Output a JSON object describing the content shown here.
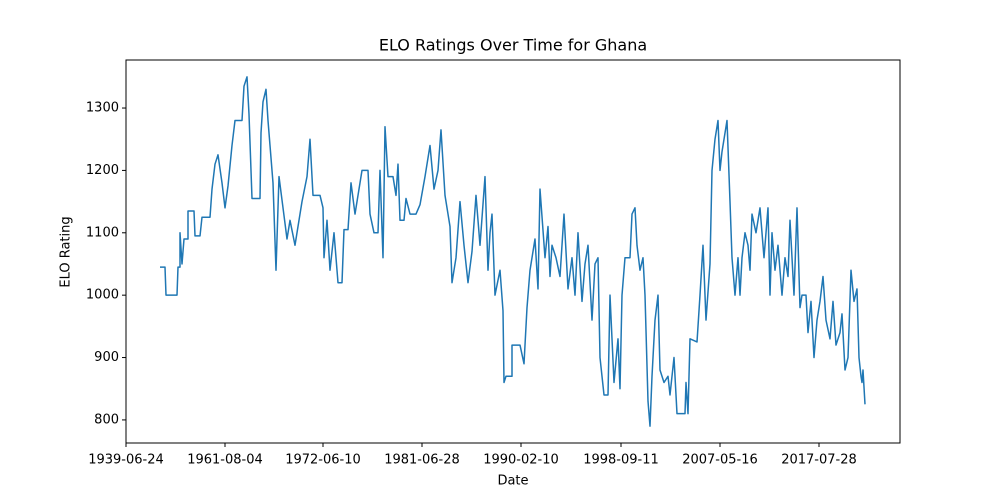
{
  "chart_data": {
    "type": "line",
    "title": "ELO Ratings Over Time for Ghana",
    "x_label": "Date",
    "y_label": "ELO Rating",
    "xlim": [
      -34,
      740
    ],
    "xticks": [
      {
        "value": -34,
        "label": "1939-06-24"
      },
      {
        "value": 65,
        "label": "1961-08-04"
      },
      {
        "value": 163,
        "label": "1972-06-10"
      },
      {
        "value": 262,
        "label": "1981-06-28"
      },
      {
        "value": 361,
        "label": "1990-02-10"
      },
      {
        "value": 461,
        "label": "1998-09-11"
      },
      {
        "value": 560,
        "label": "2007-05-16"
      },
      {
        "value": 659,
        "label": "2017-07-28"
      }
    ],
    "ylim": [
      763,
      1377
    ],
    "yticks": [
      800,
      900,
      1000,
      1100,
      1200,
      1300
    ],
    "grid": false,
    "series": [
      {
        "color": "#1f77b4",
        "x": [
          0,
          5,
          6,
          17,
          18,
          20,
          20,
          22,
          24,
          28,
          28,
          34,
          35,
          40,
          42,
          50,
          52,
          55,
          58,
          62,
          65,
          68,
          72,
          75,
          82,
          84,
          87,
          89,
          92,
          100,
          101,
          103,
          106,
          108,
          110,
          113,
          116,
          119,
          123,
          127,
          130,
          135,
          138,
          142,
          147,
          150,
          153,
          160,
          163,
          164,
          167,
          170,
          174,
          178,
          182,
          184,
          188,
          191,
          195,
          198,
          202,
          208,
          210,
          214,
          218,
          220,
          223,
          225,
          228,
          233,
          236,
          238,
          240,
          244,
          246,
          250,
          256,
          260,
          265,
          270,
          274,
          278,
          281,
          285,
          290,
          292,
          296,
          300,
          304,
          308,
          312,
          316,
          320,
          325,
          328,
          330,
          332,
          335,
          340,
          343,
          344,
          346,
          352,
          352,
          360,
          364,
          367,
          370,
          375,
          378,
          380,
          385,
          388,
          390,
          392,
          396,
          400,
          404,
          408,
          412,
          415,
          418,
          422,
          425,
          428,
          432,
          435,
          438,
          440,
          444,
          448,
          450,
          454,
          458,
          460,
          462,
          465,
          470,
          472,
          475,
          477,
          480,
          483,
          485,
          488,
          490,
          492,
          495,
          498,
          500,
          504,
          508,
          510,
          514,
          517,
          525,
          526,
          528,
          530,
          537,
          540,
          543,
          546,
          550,
          552,
          555,
          558,
          560,
          562,
          565,
          567,
          570,
          572,
          575,
          578,
          580,
          582,
          585,
          588,
          590,
          592,
          596,
          600,
          604,
          608,
          610,
          612,
          615,
          618,
          622,
          625,
          628,
          630,
          634,
          637,
          640,
          642,
          646,
          648,
          651,
          654,
          657,
          660,
          663,
          666,
          670,
          673,
          676,
          680,
          682,
          685,
          688,
          691,
          694,
          697,
          699,
          701,
          702,
          703,
          705
        ],
        "values": [
          1045,
          1045,
          1000,
          1000,
          1045,
          1045,
          1100,
          1050,
          1090,
          1090,
          1135,
          1135,
          1095,
          1095,
          1125,
          1125,
          1170,
          1210,
          1225,
          1180,
          1140,
          1175,
          1240,
          1280,
          1280,
          1335,
          1350,
          1290,
          1155,
          1155,
          1260,
          1310,
          1330,
          1280,
          1240,
          1180,
          1040,
          1190,
          1140,
          1090,
          1120,
          1080,
          1110,
          1150,
          1190,
          1250,
          1160,
          1160,
          1140,
          1060,
          1120,
          1040,
          1100,
          1020,
          1020,
          1105,
          1105,
          1180,
          1130,
          1160,
          1200,
          1200,
          1130,
          1100,
          1100,
          1200,
          1060,
          1270,
          1190,
          1190,
          1160,
          1210,
          1120,
          1120,
          1155,
          1130,
          1130,
          1145,
          1190,
          1240,
          1170,
          1200,
          1265,
          1160,
          1110,
          1020,
          1060,
          1150,
          1080,
          1020,
          1070,
          1160,
          1080,
          1190,
          1040,
          1100,
          1130,
          1000,
          1040,
          975,
          860,
          870,
          870,
          920,
          920,
          890,
          980,
          1040,
          1090,
          1010,
          1170,
          1060,
          1110,
          1030,
          1080,
          1060,
          1030,
          1130,
          1010,
          1060,
          1000,
          1100,
          990,
          1050,
          1080,
          960,
          1050,
          1060,
          900,
          840,
          840,
          1000,
          860,
          930,
          850,
          1000,
          1060,
          1060,
          1130,
          1140,
          1080,
          1040,
          1060,
          1000,
          830,
          790,
          870,
          960,
          1000,
          880,
          860,
          870,
          840,
          900,
          810,
          810,
          860,
          810,
          930,
          925,
          1000,
          1080,
          960,
          1050,
          1200,
          1250,
          1280,
          1200,
          1230,
          1260,
          1280,
          1150,
          1060,
          1000,
          1060,
          1000,
          1060,
          1100,
          1080,
          1040,
          1130,
          1100,
          1140,
          1060,
          1140,
          1000,
          1100,
          1040,
          1080,
          1000,
          1060,
          1030,
          1120,
          1000,
          1140,
          980,
          1000,
          1000,
          940,
          990,
          900,
          960,
          990,
          1030,
          960,
          930,
          990,
          920,
          940,
          970,
          880,
          900,
          1040,
          990,
          1010,
          900,
          870,
          860,
          880,
          825
        ]
      }
    ]
  }
}
